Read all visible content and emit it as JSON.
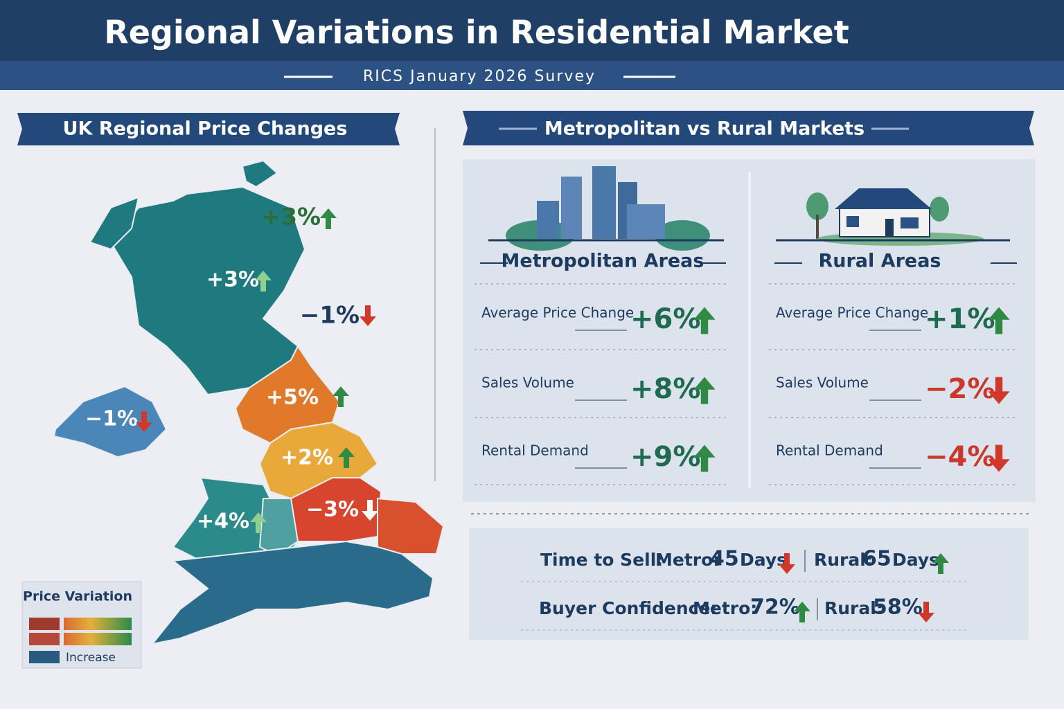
{
  "header": {
    "title": "Regional Variations in Residential Market",
    "subtitle": "RICS January 2026 Survey"
  },
  "map_panel": {
    "title": "UK Regional Price Changes",
    "regions": [
      {
        "label": "+3%"
      },
      {
        "label": "+3%"
      },
      {
        "label": "−1%"
      },
      {
        "label": "+5%"
      },
      {
        "label": "−1%"
      },
      {
        "label": "+2%"
      },
      {
        "label": "+4%"
      },
      {
        "label": "−3%"
      }
    ],
    "legend": {
      "title": "Price Variation",
      "label": "Increase"
    }
  },
  "comparison": {
    "title": "Metropolitan vs Rural Markets",
    "columns": [
      {
        "name": "Metropolitan Areas",
        "rows": [
          {
            "label": "Average Price Change",
            "value": "+6%"
          },
          {
            "label": "Sales Volume",
            "value": "+8%"
          },
          {
            "label": "Rental Demand",
            "value": "+9%"
          }
        ]
      },
      {
        "name": "Rural Areas",
        "rows": [
          {
            "label": "Average Price Change",
            "value": "+1%"
          },
          {
            "label": "Sales Volume",
            "value": "−2%"
          },
          {
            "label": "Rental Demand",
            "value": "−4%"
          }
        ]
      }
    ]
  },
  "summary": {
    "rows": [
      {
        "label": "Time to Sell:",
        "metro_label": "Metro:",
        "metro_value": "45",
        "metro_unit": "Days",
        "rural_label": "Rural:",
        "rural_value": "65",
        "rural_unit": "Days"
      },
      {
        "label": "Buyer Confidence:",
        "metro_label": "Metro:",
        "metro_value": "72%",
        "rural_label": "Rural:",
        "rural_value": "58%"
      }
    ]
  }
}
